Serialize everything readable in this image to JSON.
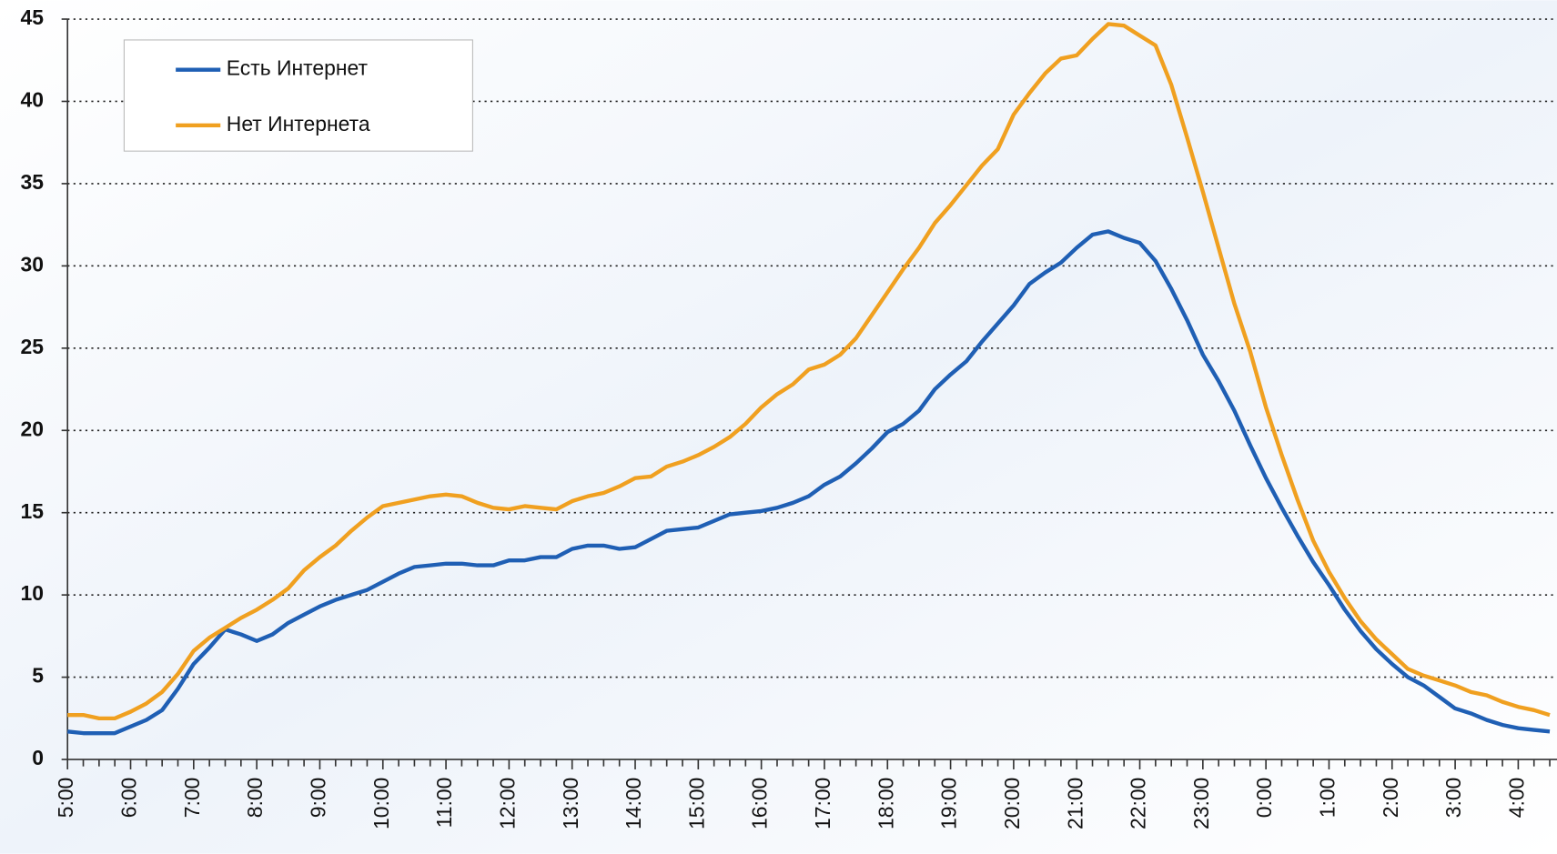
{
  "chart_data": {
    "type": "line",
    "categories": [
      "5:00",
      null,
      null,
      null,
      "6:00",
      null,
      null,
      null,
      "7:00",
      null,
      null,
      null,
      "8:00",
      null,
      null,
      null,
      "9:00",
      null,
      null,
      null,
      "10:00",
      null,
      null,
      null,
      "11:00",
      null,
      null,
      null,
      "12:00",
      null,
      null,
      null,
      "13:00",
      null,
      null,
      null,
      "14:00",
      null,
      null,
      null,
      "15:00",
      null,
      null,
      null,
      "16:00",
      null,
      null,
      null,
      "17:00",
      null,
      null,
      null,
      "18:00",
      null,
      null,
      null,
      "19:00",
      null,
      null,
      null,
      "20:00",
      null,
      null,
      null,
      "21:00",
      null,
      null,
      null,
      "22:00",
      null,
      null,
      null,
      "23:00",
      null,
      null,
      null,
      "0:00",
      null,
      null,
      null,
      "1:00",
      null,
      null,
      null,
      "2:00",
      null,
      null,
      null,
      "3:00",
      null,
      null,
      null,
      "4:00",
      null,
      null
    ],
    "series": [
      {
        "name": "Есть Интернет",
        "color": "#1f5fb4",
        "values": [
          1.7,
          1.6,
          1.6,
          1.6,
          2.0,
          2.4,
          3.0,
          4.3,
          5.8,
          6.8,
          7.9,
          7.6,
          7.2,
          7.6,
          8.3,
          8.8,
          9.3,
          9.7,
          10.0,
          10.3,
          10.8,
          11.3,
          11.7,
          11.8,
          11.9,
          11.9,
          11.8,
          11.8,
          12.1,
          12.1,
          12.3,
          12.3,
          12.8,
          13.0,
          13.0,
          12.8,
          12.9,
          13.4,
          13.9,
          14.0,
          14.1,
          14.5,
          14.9,
          15.0,
          15.1,
          15.3,
          15.6,
          16.0,
          16.7,
          17.2,
          18.0,
          18.9,
          19.9,
          20.4,
          21.2,
          22.5,
          23.4,
          24.2,
          25.4,
          26.5,
          27.6,
          28.9,
          29.6,
          30.2,
          31.1,
          31.9,
          32.1,
          31.7,
          31.4,
          30.3,
          28.6,
          26.7,
          24.6,
          23.0,
          21.2,
          19.1,
          17.1,
          15.3,
          13.6,
          12.0,
          10.6,
          9.1,
          7.8,
          6.7,
          5.8,
          5.0,
          4.5,
          3.8,
          3.1,
          2.8,
          2.4,
          2.1,
          1.9,
          1.8,
          1.7
        ]
      },
      {
        "name": "Нет Интернета",
        "color": "#f0a020",
        "values": [
          2.7,
          2.7,
          2.5,
          2.5,
          2.9,
          3.4,
          4.1,
          5.2,
          6.6,
          7.4,
          8.0,
          8.6,
          9.1,
          9.7,
          10.4,
          11.5,
          12.3,
          13.0,
          13.9,
          14.7,
          15.4,
          15.6,
          15.8,
          16.0,
          16.1,
          16.0,
          15.6,
          15.3,
          15.2,
          15.4,
          15.3,
          15.2,
          15.7,
          16.0,
          16.2,
          16.6,
          17.1,
          17.2,
          17.8,
          18.1,
          18.5,
          19.0,
          19.6,
          20.4,
          21.4,
          22.2,
          22.8,
          23.7,
          24.0,
          24.6,
          25.6,
          27.0,
          28.4,
          29.8,
          31.1,
          32.6,
          33.7,
          34.9,
          36.1,
          37.1,
          39.2,
          40.5,
          41.7,
          42.6,
          42.8,
          43.8,
          44.7,
          44.6,
          44.0,
          43.4,
          41.0,
          37.8,
          34.5,
          31.1,
          27.7,
          24.8,
          21.4,
          18.5,
          15.8,
          13.3,
          11.4,
          9.8,
          8.4,
          7.3,
          6.4,
          5.5,
          5.1,
          4.8,
          4.5,
          4.1,
          3.9,
          3.5,
          3.2,
          3.0,
          2.7
        ]
      }
    ],
    "ylim": [
      0,
      45
    ],
    "yticks": [
      0,
      5,
      10,
      15,
      20,
      25,
      30,
      35,
      40,
      45
    ],
    "grid": true,
    "legend": "upper left"
  }
}
